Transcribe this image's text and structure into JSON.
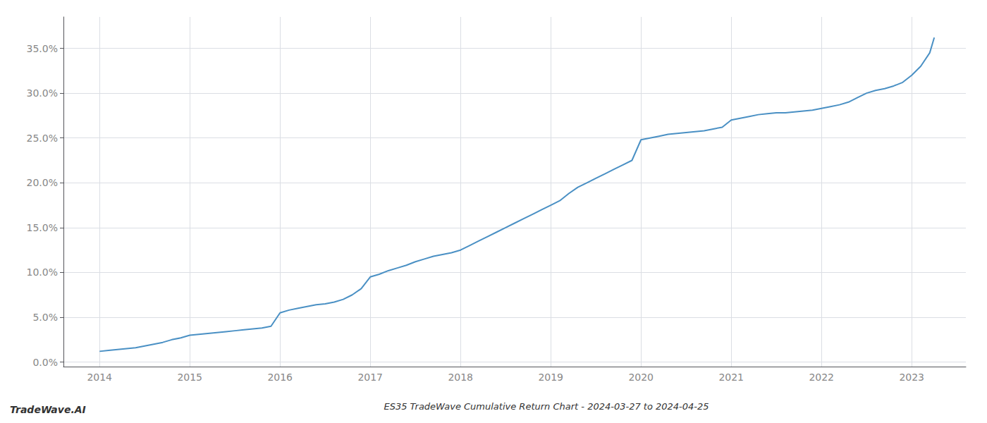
{
  "chart_data": {
    "type": "line",
    "title": "ES35 TradeWave Cumulative Return Chart - 2024-03-27 to 2024-04-25",
    "annotations": [
      "TradeWave.AI"
    ],
    "color": "#4a90c4",
    "grid": true,
    "x": [
      2014.0,
      2014.1,
      2014.2,
      2014.3,
      2014.4,
      2014.5,
      2014.6,
      2014.7,
      2014.8,
      2014.9,
      2015.0,
      2015.1,
      2015.2,
      2015.3,
      2015.4,
      2015.5,
      2015.6,
      2015.7,
      2015.8,
      2015.9,
      2016.0,
      2016.1,
      2016.2,
      2016.3,
      2016.4,
      2016.5,
      2016.6,
      2016.7,
      2016.8,
      2016.9,
      2017.0,
      2017.1,
      2017.2,
      2017.3,
      2017.4,
      2017.5,
      2017.6,
      2017.7,
      2017.8,
      2017.9,
      2018.0,
      2018.1,
      2018.2,
      2018.3,
      2018.4,
      2018.5,
      2018.6,
      2018.7,
      2018.8,
      2018.9,
      2019.0,
      2019.1,
      2019.2,
      2019.3,
      2019.4,
      2019.5,
      2019.6,
      2019.7,
      2019.8,
      2019.9,
      2020.0,
      2020.1,
      2020.2,
      2020.3,
      2020.4,
      2020.5,
      2020.6,
      2020.7,
      2020.8,
      2020.9,
      2021.0,
      2021.1,
      2021.2,
      2021.3,
      2021.4,
      2021.5,
      2021.6,
      2021.7,
      2021.8,
      2021.9,
      2022.0,
      2022.1,
      2022.2,
      2022.3,
      2022.4,
      2022.5,
      2022.6,
      2022.7,
      2022.8,
      2022.9,
      2023.0,
      2023.1,
      2023.2,
      2023.25
    ],
    "values": [
      1.2,
      1.3,
      1.4,
      1.5,
      1.6,
      1.8,
      2.0,
      2.2,
      2.5,
      2.7,
      3.0,
      3.1,
      3.2,
      3.3,
      3.4,
      3.5,
      3.6,
      3.7,
      3.8,
      4.0,
      5.5,
      5.8,
      6.0,
      6.2,
      6.4,
      6.5,
      6.7,
      7.0,
      7.5,
      8.2,
      9.5,
      9.8,
      10.2,
      10.5,
      10.8,
      11.2,
      11.5,
      11.8,
      12.0,
      12.2,
      12.5,
      13.0,
      13.5,
      14.0,
      14.5,
      15.0,
      15.5,
      16.0,
      16.5,
      17.0,
      17.5,
      18.0,
      18.8,
      19.5,
      20.0,
      20.5,
      21.0,
      21.5,
      22.0,
      22.5,
      24.8,
      25.0,
      25.2,
      25.4,
      25.5,
      25.6,
      25.7,
      25.8,
      26.0,
      26.2,
      27.0,
      27.2,
      27.4,
      27.6,
      27.7,
      27.8,
      27.8,
      27.9,
      28.0,
      28.1,
      28.3,
      28.5,
      28.7,
      29.0,
      29.5,
      30.0,
      30.3,
      30.5,
      30.8,
      31.2,
      32.0,
      33.0,
      34.5,
      36.2
    ],
    "xlim": [
      2013.6,
      2023.6
    ],
    "xticks": [
      2014,
      2015,
      2016,
      2017,
      2018,
      2019,
      2020,
      2021,
      2022,
      2023
    ],
    "ylim": [
      -0.5,
      38.5
    ],
    "yticks": [
      {
        "value": 0,
        "label": "0.0%"
      },
      {
        "value": 5,
        "label": "5.0%"
      },
      {
        "value": 10,
        "label": "10.0%"
      },
      {
        "value": 15,
        "label": "15.0%"
      },
      {
        "value": 20,
        "label": "20.0%"
      },
      {
        "value": 25,
        "label": "25.0%"
      },
      {
        "value": 30,
        "label": "30.0%"
      },
      {
        "value": 35,
        "label": "35.0%"
      }
    ]
  }
}
